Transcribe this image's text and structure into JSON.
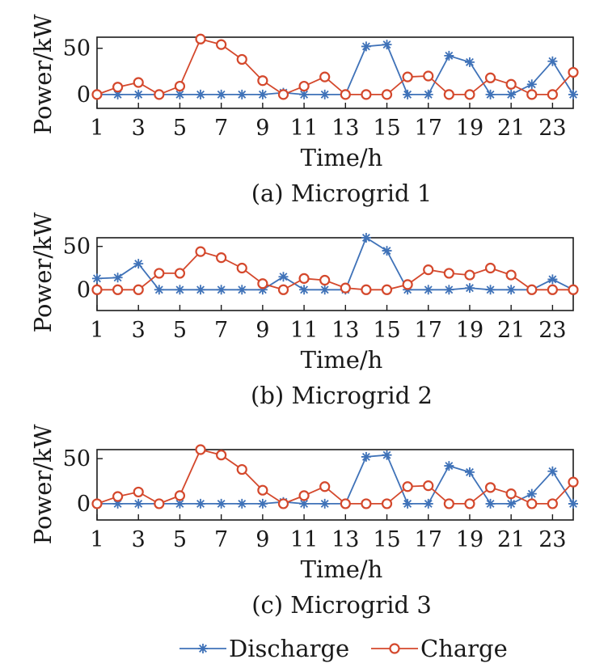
{
  "colors": {
    "discharge": "#3f72b8",
    "charge": "#d4482c",
    "axis": "#1a1a1a"
  },
  "legend": {
    "discharge_label": "Discharge",
    "charge_label": "Charge",
    "placement": "bottom-center"
  },
  "chart_data": [
    {
      "type": "line",
      "caption": "(a) Microgrid 1",
      "xlabel": "Time/h",
      "ylabel": "Power/kW",
      "x": [
        1,
        2,
        3,
        4,
        5,
        6,
        7,
        8,
        9,
        10,
        11,
        12,
        13,
        14,
        15,
        16,
        17,
        18,
        19,
        20,
        21,
        22,
        23,
        24
      ],
      "x_ticks": [
        1,
        3,
        5,
        7,
        9,
        11,
        13,
        15,
        17,
        19,
        21,
        23
      ],
      "y_ticks": [
        0,
        50
      ],
      "xlim": [
        1,
        24
      ],
      "ylim": [
        -15,
        62
      ],
      "grid": false,
      "series": [
        {
          "name": "Discharge",
          "marker": "star",
          "values": [
            0,
            0,
            0,
            0,
            0,
            0,
            0,
            0,
            0,
            2,
            0,
            0,
            0,
            52,
            54,
            0,
            0,
            42,
            35,
            0,
            0,
            11,
            36,
            0
          ]
        },
        {
          "name": "Charge",
          "marker": "circle",
          "values": [
            0,
            8,
            13,
            0,
            9,
            60,
            54,
            38,
            15,
            0,
            9,
            19,
            0,
            0,
            0,
            19,
            20,
            0,
            0,
            18,
            11,
            0,
            0,
            24
          ]
        }
      ]
    },
    {
      "type": "line",
      "caption": "(b) Microgrid 2",
      "xlabel": "Time/h",
      "ylabel": "Power/kW",
      "x": [
        1,
        2,
        3,
        4,
        5,
        6,
        7,
        8,
        9,
        10,
        11,
        12,
        13,
        14,
        15,
        16,
        17,
        18,
        19,
        20,
        21,
        22,
        23,
        24
      ],
      "x_ticks": [
        1,
        3,
        5,
        7,
        9,
        11,
        13,
        15,
        17,
        19,
        21,
        23
      ],
      "y_ticks": [
        0,
        50
      ],
      "xlim": [
        1,
        24
      ],
      "ylim": [
        -24,
        60
      ],
      "grid": false,
      "series": [
        {
          "name": "Discharge",
          "marker": "star",
          "values": [
            13,
            14,
            30,
            0,
            0,
            0,
            0,
            0,
            0,
            15,
            0,
            0,
            0,
            60,
            45,
            0,
            0,
            0,
            2,
            0,
            0,
            0,
            12,
            0
          ]
        },
        {
          "name": "Charge",
          "marker": "circle",
          "values": [
            0,
            0,
            0,
            19,
            19,
            44,
            37,
            25,
            7,
            0,
            13,
            11,
            2,
            0,
            0,
            6,
            23,
            19,
            17,
            25,
            17,
            0,
            0,
            0
          ]
        }
      ]
    },
    {
      "type": "line",
      "caption": "(c) Microgrid 3",
      "xlabel": "Time/h",
      "ylabel": "Power/kW",
      "x": [
        1,
        2,
        3,
        4,
        5,
        6,
        7,
        8,
        9,
        10,
        11,
        12,
        13,
        14,
        15,
        16,
        17,
        18,
        19,
        20,
        21,
        22,
        23,
        24
      ],
      "x_ticks": [
        1,
        3,
        5,
        7,
        9,
        11,
        13,
        15,
        17,
        19,
        21,
        23
      ],
      "y_ticks": [
        0,
        50
      ],
      "xlim": [
        1,
        24
      ],
      "ylim": [
        -18,
        60
      ],
      "grid": false,
      "series": [
        {
          "name": "Discharge",
          "marker": "star",
          "values": [
            0,
            0,
            0,
            0,
            0,
            0,
            0,
            0,
            0,
            2,
            0,
            0,
            0,
            52,
            54,
            0,
            0,
            42,
            35,
            0,
            0,
            11,
            36,
            0
          ]
        },
        {
          "name": "Charge",
          "marker": "circle",
          "values": [
            0,
            8,
            13,
            0,
            9,
            60,
            54,
            38,
            15,
            0,
            9,
            19,
            0,
            0,
            0,
            19,
            20,
            0,
            0,
            18,
            11,
            0,
            0,
            24
          ]
        }
      ]
    }
  ]
}
